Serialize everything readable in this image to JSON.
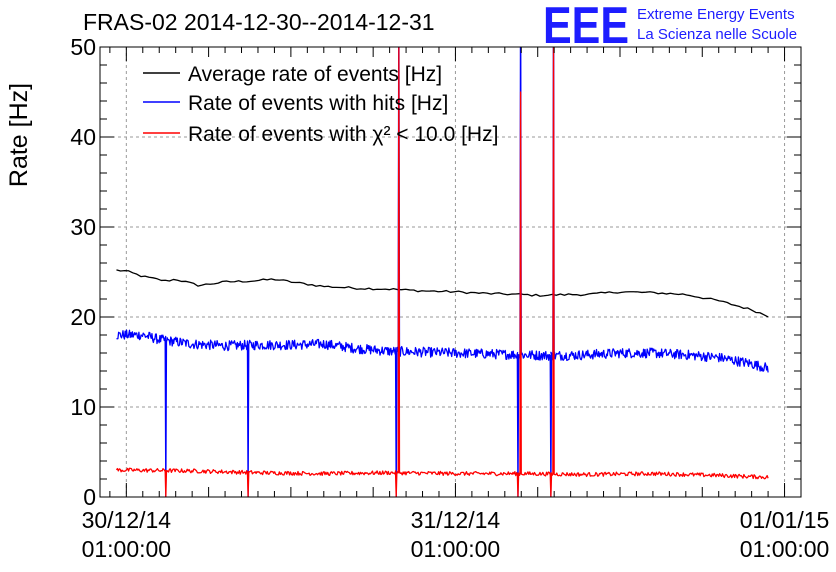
{
  "header": {
    "title": "FRAS-02 2014-12-30--2014-12-31",
    "logo_text": "EEE",
    "logo_line1": "Extreme Energy Events",
    "logo_line2": "La Scienza nelle Scuole"
  },
  "colors": {
    "average": "#000000",
    "hits": "#0000ff",
    "chi2": "#ff0000",
    "logo": "#1d1dff"
  },
  "chart_data": {
    "type": "line",
    "title": "FRAS-02 2014-12-30--2014-12-31",
    "ylabel": "Rate [Hz]",
    "xlabel": "",
    "ylim": [
      0,
      50
    ],
    "xlim": [
      -0.08,
      2.05
    ],
    "grid": true,
    "legend_position": "top-left",
    "yticks": [
      "0",
      "10",
      "20",
      "30",
      "40",
      "50"
    ],
    "xticks": [
      {
        "x": 0,
        "line1": "30/12/14",
        "line2": "01:00:00"
      },
      {
        "x": 1,
        "line1": "31/12/14",
        "line2": "01:00:00"
      },
      {
        "x": 2,
        "line1": "01/01/15",
        "line2": "01:00:00"
      }
    ],
    "series": [
      {
        "name": "Average rate of events [Hz]",
        "x": [
          -0.03,
          0.0,
          0.05,
          0.12,
          0.15,
          0.22,
          0.3,
          0.38,
          0.45,
          0.5,
          0.6,
          0.7,
          0.8,
          0.9,
          1.0,
          1.1,
          1.2,
          1.25,
          1.35,
          1.4,
          1.5,
          1.6,
          1.7,
          1.8,
          1.9,
          1.95
        ],
        "values": [
          25.2,
          25.1,
          24.5,
          24.0,
          24.2,
          23.5,
          23.9,
          24.0,
          24.2,
          23.9,
          23.4,
          23.2,
          23.1,
          22.9,
          22.8,
          22.6,
          22.5,
          22.4,
          22.5,
          22.5,
          22.8,
          22.7,
          22.5,
          21.8,
          20.8,
          20.1
        ]
      },
      {
        "name": "Rate of events with hits [Hz]",
        "x": [
          -0.03,
          0.05,
          0.1,
          0.2,
          0.3,
          0.4,
          0.5,
          0.6,
          0.7,
          0.8,
          0.9,
          1.0,
          1.1,
          1.2,
          1.3,
          1.4,
          1.5,
          1.6,
          1.7,
          1.8,
          1.9,
          1.95
        ],
        "values": [
          18.0,
          18.0,
          17.5,
          17.0,
          16.8,
          16.9,
          16.9,
          17.0,
          16.5,
          16.2,
          16.1,
          16.0,
          15.9,
          15.8,
          15.7,
          15.8,
          16.0,
          16.0,
          15.8,
          15.5,
          14.8,
          14.3
        ],
        "dips": [
          0.12,
          0.37,
          0.82,
          1.19,
          1.29
        ],
        "spikes": [
          0.82,
          1.19,
          1.29
        ]
      },
      {
        "name": "Rate of events with χ² < 10.0 [Hz]",
        "x": [
          -0.03,
          0.2,
          0.4,
          0.6,
          0.8,
          1.0,
          1.2,
          1.4,
          1.6,
          1.8,
          1.95
        ],
        "values": [
          3.0,
          2.9,
          2.7,
          2.6,
          2.7,
          2.6,
          2.6,
          2.5,
          2.6,
          2.4,
          2.2
        ],
        "dips": [
          0.12,
          0.37,
          0.82,
          1.19,
          1.29
        ],
        "spikes": [
          0.82,
          1.19,
          1.29
        ],
        "spike_peaks": [
          50,
          45,
          50
        ]
      }
    ]
  }
}
